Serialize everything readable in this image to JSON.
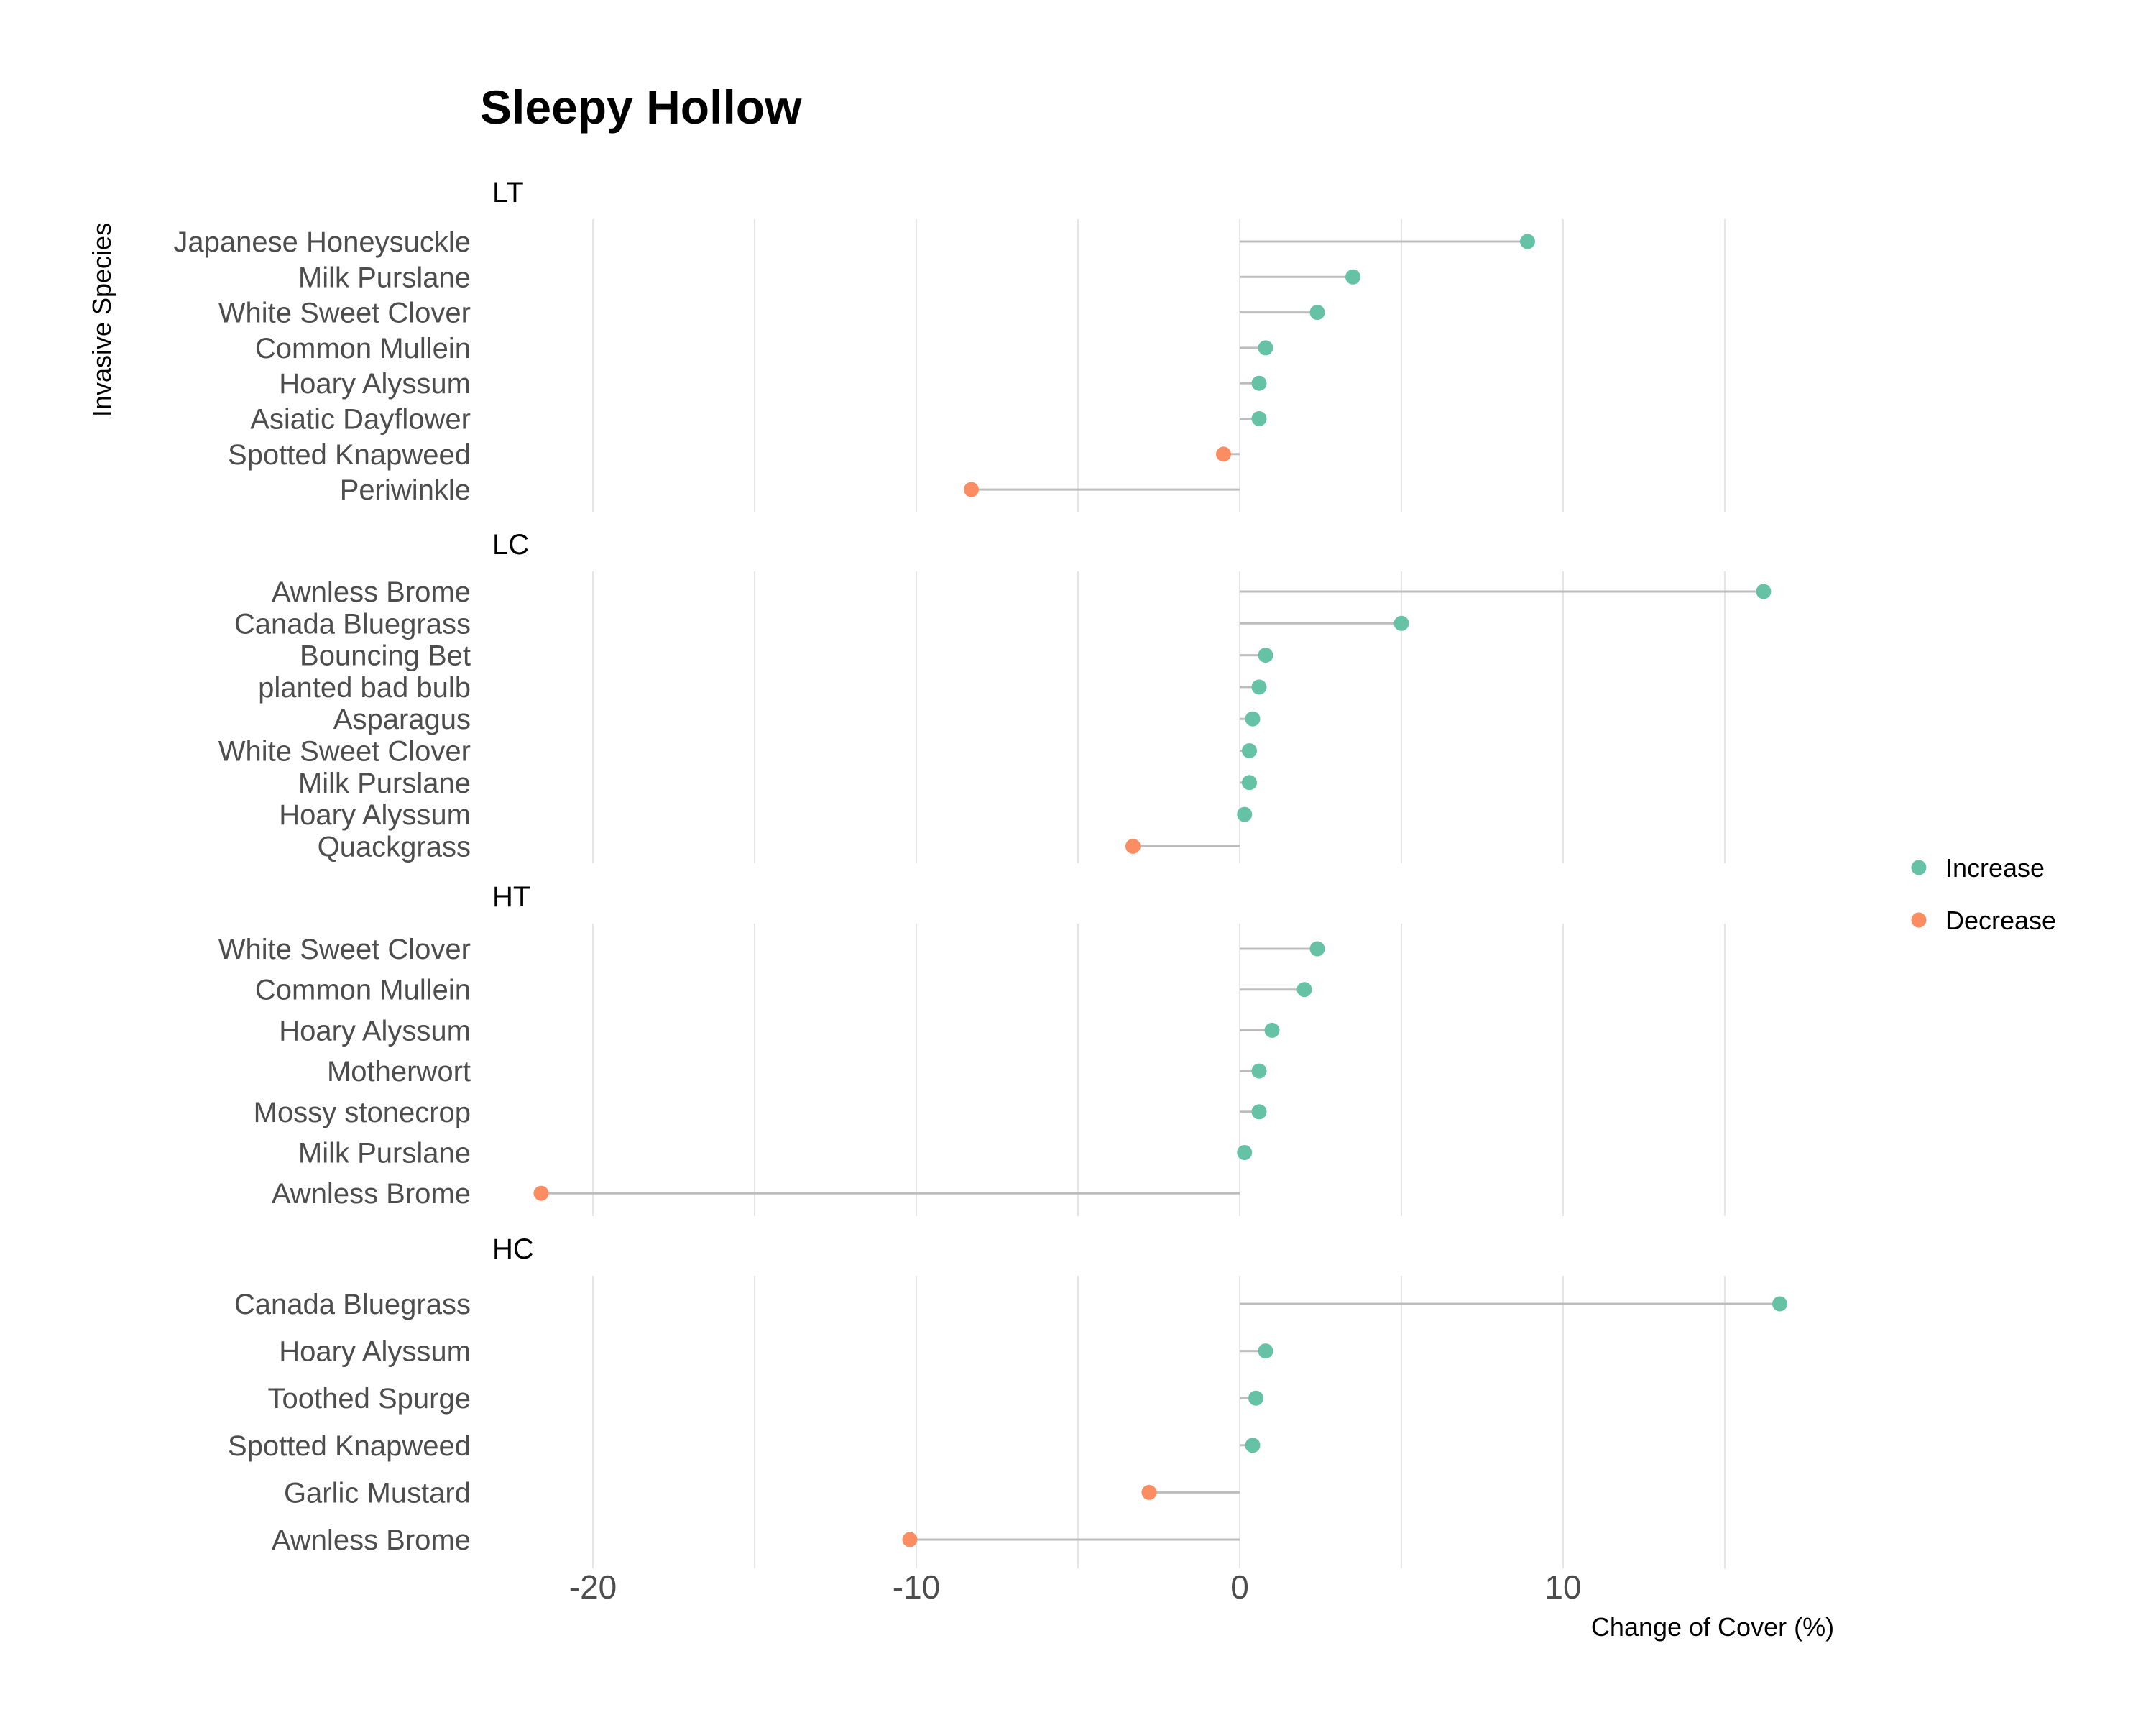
{
  "chart_data": {
    "type": "lollipop",
    "title": "Sleepy Hollow",
    "xlabel": "Change of Cover (%)",
    "ylabel": "Invasive Species",
    "xlim": [
      -23,
      17.5
    ],
    "x_ticks": [
      -20,
      -10,
      0,
      10
    ],
    "grid": true,
    "legend_position": "right",
    "colors": {
      "Increase": "#66c2a5",
      "Decrease": "#fc8d62",
      "stem": "#bdbdbd",
      "grid": "#e6e6e6"
    },
    "legend": [
      {
        "label": "Increase",
        "color": "#66c2a5"
      },
      {
        "label": "Decrease",
        "color": "#fc8d62"
      }
    ],
    "panels": [
      {
        "name": "LT",
        "items": [
          {
            "species": "Japanese Honeysuckle ",
            "value": 8.9
          },
          {
            "species": "Milk Purslane",
            "value": 3.5
          },
          {
            "species": "White Sweet Clover",
            "value": 2.4
          },
          {
            "species": "Common Mullein",
            "value": 0.8
          },
          {
            "species": "Hoary Alyssum",
            "value": 0.6
          },
          {
            "species": "Asiatic Dayflower",
            "value": 0.6
          },
          {
            "species": "Spotted Knapweed",
            "value": -0.5
          },
          {
            "species": "Periwinkle",
            "value": -8.3
          }
        ]
      },
      {
        "name": "LC",
        "items": [
          {
            "species": "Awnless Brome",
            "value": 16.2
          },
          {
            "species": "Canada Bluegrass",
            "value": 5.0
          },
          {
            "species": "Bouncing Bet",
            "value": 0.8
          },
          {
            "species": "planted bad bulb",
            "value": 0.6
          },
          {
            "species": "Asparagus",
            "value": 0.4
          },
          {
            "species": "White Sweet Clover",
            "value": 0.3
          },
          {
            "species": "Milk Purslane",
            "value": 0.3
          },
          {
            "species": "Hoary Alyssum",
            "value": 0.15
          },
          {
            "species": "Quackgrass",
            "value": -3.3
          }
        ]
      },
      {
        "name": "HT",
        "items": [
          {
            "species": "White Sweet Clover",
            "value": 2.4
          },
          {
            "species": "Common Mullein",
            "value": 2.0
          },
          {
            "species": "Hoary Alyssum",
            "value": 1.0
          },
          {
            "species": "Motherwort",
            "value": 0.6
          },
          {
            "species": "Mossy stonecrop",
            "value": 0.6
          },
          {
            "species": "Milk Purslane",
            "value": 0.15
          },
          {
            "species": "Awnless Brome",
            "value": -21.6
          }
        ]
      },
      {
        "name": "HC",
        "items": [
          {
            "species": "Canada Bluegrass",
            "value": 16.7
          },
          {
            "species": "Hoary Alyssum",
            "value": 0.8
          },
          {
            "species": "Toothed Spurge",
            "value": 0.5
          },
          {
            "species": "Spotted Knapweed",
            "value": 0.4
          },
          {
            "species": "Garlic Mustard",
            "value": -2.8
          },
          {
            "species": "Awnless Brome",
            "value": -10.2
          }
        ]
      }
    ]
  }
}
